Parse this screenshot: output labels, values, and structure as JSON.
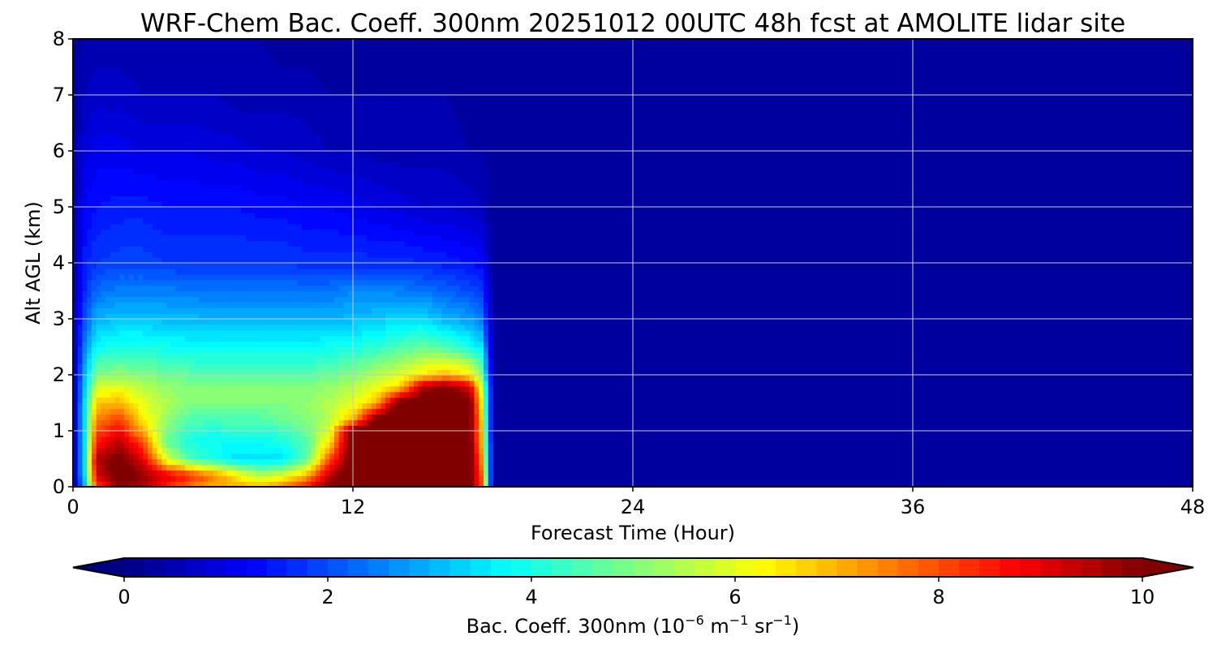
{
  "chart_data": {
    "type": "heatmap",
    "title": "WRF-Chem Bac. Coeff. 300nm  20251012 00UTC 48h fcst at AMOLITE lidar site",
    "xlabel": "Forecast Time (Hour)",
    "ylabel": "Alt AGL (km)",
    "xlim": [
      0,
      48
    ],
    "ylim": [
      0,
      8
    ],
    "xticks": [
      0,
      12,
      24,
      36,
      48
    ],
    "yticks": [
      0,
      1,
      2,
      3,
      4,
      5,
      6,
      7,
      8
    ],
    "grid": true,
    "colormap": "jet",
    "colorbar": {
      "label_main": "Bac. Coeff. 300nm  (10",
      "label_exp1": "−6",
      "label_mid": " m",
      "label_exp2": "−1",
      "label_sr": " sr",
      "label_exp3": "−1",
      "label_end": ")",
      "range": [
        0,
        10
      ],
      "ticks": [
        0,
        2,
        4,
        6,
        8,
        10
      ],
      "extend": "both",
      "levels": 50
    },
    "x": [
      0,
      0.5,
      1,
      2,
      3,
      4,
      5,
      6,
      7,
      8,
      9,
      10,
      11,
      12,
      13,
      14,
      15,
      16,
      17,
      17.5,
      18
    ],
    "y": [
      0,
      0.2,
      0.5,
      0.8,
      1.0,
      1.2,
      1.5,
      1.8,
      2.0,
      2.2,
      2.5,
      3.0,
      3.5,
      4.0,
      5.0,
      6.0,
      7.0,
      8.0
    ],
    "z": [
      [
        0.3,
        3.0,
        8.0,
        9.8,
        9.5,
        8.5,
        7.5,
        7.0,
        7.0,
        7.0,
        7.5,
        8.5,
        10.0,
        10.5,
        10.5,
        10.5,
        10.5,
        10.5,
        10.5,
        8.0,
        0.5
      ],
      [
        0.3,
        3.5,
        9.0,
        10.5,
        9.8,
        9.0,
        8.5,
        7.5,
        6.5,
        5.5,
        6.0,
        7.0,
        9.5,
        10.5,
        10.5,
        10.5,
        10.5,
        10.5,
        10.5,
        8.0,
        0.5
      ],
      [
        0.3,
        3.5,
        9.5,
        10.2,
        9.0,
        6.0,
        4.5,
        4.0,
        3.5,
        3.5,
        3.5,
        4.5,
        8.0,
        10.5,
        10.5,
        10.5,
        10.5,
        10.5,
        10.5,
        7.5,
        0.5
      ],
      [
        0.3,
        3.5,
        8.5,
        9.5,
        8.0,
        4.8,
        4.0,
        3.8,
        3.8,
        3.8,
        4.0,
        4.5,
        6.5,
        10.5,
        10.5,
        10.5,
        10.5,
        10.5,
        10.5,
        7.0,
        0.5
      ],
      [
        0.3,
        3.5,
        8.0,
        8.8,
        7.0,
        5.0,
        4.2,
        4.0,
        4.2,
        4.2,
        4.3,
        4.8,
        6.0,
        10.5,
        10.5,
        10.5,
        10.5,
        10.5,
        10.5,
        7.0,
        0.5
      ],
      [
        0.3,
        3.5,
        7.5,
        8.2,
        6.5,
        5.2,
        4.5,
        4.5,
        4.5,
        4.5,
        4.8,
        5.0,
        5.5,
        7.0,
        10.5,
        10.5,
        10.5,
        10.5,
        10.5,
        6.8,
        0.5
      ],
      [
        0.3,
        3.5,
        6.8,
        7.0,
        6.0,
        5.5,
        5.0,
        5.0,
        5.0,
        5.0,
        5.0,
        5.2,
        5.5,
        6.0,
        7.0,
        10.5,
        10.5,
        10.5,
        10.5,
        6.5,
        0.5
      ],
      [
        0.3,
        3.2,
        5.8,
        6.0,
        5.5,
        5.2,
        5.0,
        5.0,
        5.0,
        5.0,
        5.0,
        5.0,
        5.2,
        5.5,
        6.0,
        6.5,
        9.5,
        10.0,
        9.0,
        6.0,
        0.5
      ],
      [
        0.3,
        3.0,
        5.0,
        5.2,
        5.0,
        4.8,
        4.7,
        4.6,
        4.6,
        4.6,
        4.6,
        4.6,
        4.8,
        5.0,
        5.5,
        6.0,
        6.5,
        7.0,
        6.5,
        5.0,
        0.5
      ],
      [
        0.3,
        2.8,
        4.5,
        4.7,
        4.6,
        4.4,
        4.3,
        4.2,
        4.2,
        4.2,
        4.2,
        4.2,
        4.4,
        4.6,
        5.0,
        5.3,
        5.8,
        6.0,
        5.5,
        4.5,
        0.5
      ],
      [
        0.3,
        2.5,
        3.8,
        4.0,
        4.0,
        3.9,
        3.8,
        3.8,
        3.8,
        3.8,
        3.8,
        3.8,
        3.9,
        4.0,
        4.2,
        4.5,
        4.8,
        4.5,
        4.0,
        3.5,
        0.5
      ],
      [
        0.3,
        2.0,
        3.0,
        3.2,
        3.2,
        3.1,
        3.1,
        3.0,
        3.0,
        3.0,
        3.0,
        3.0,
        3.0,
        3.1,
        3.2,
        3.4,
        3.4,
        3.0,
        2.8,
        2.5,
        0.4
      ],
      [
        0.3,
        1.6,
        2.3,
        2.5,
        2.5,
        2.5,
        2.4,
        2.4,
        2.4,
        2.4,
        2.4,
        2.4,
        2.4,
        2.6,
        2.6,
        2.5,
        2.4,
        2.2,
        2.0,
        1.8,
        0.4
      ],
      [
        0.3,
        1.5,
        1.8,
        1.9,
        1.9,
        1.8,
        1.8,
        1.8,
        1.8,
        1.8,
        1.8,
        1.7,
        1.7,
        1.7,
        1.7,
        1.7,
        1.6,
        1.5,
        1.4,
        1.3,
        0.3
      ],
      [
        0.3,
        1.2,
        1.4,
        1.5,
        1.5,
        1.4,
        1.4,
        1.4,
        1.4,
        1.3,
        1.3,
        1.2,
        1.2,
        1.1,
        1.0,
        0.9,
        0.8,
        0.8,
        0.7,
        0.6,
        0.3
      ],
      [
        0.3,
        0.9,
        1.1,
        1.1,
        1.0,
        1.0,
        1.0,
        0.9,
        0.9,
        0.8,
        0.8,
        0.7,
        0.6,
        0.6,
        0.5,
        0.5,
        0.5,
        0.5,
        0.4,
        0.4,
        0.3
      ],
      [
        0.3,
        0.6,
        0.7,
        0.7,
        0.6,
        0.6,
        0.6,
        0.6,
        0.5,
        0.5,
        0.5,
        0.5,
        0.4,
        0.4,
        0.4,
        0.4,
        0.4,
        0.4,
        0.3,
        0.3,
        0.3
      ],
      [
        0.3,
        0.4,
        0.5,
        0.5,
        0.4,
        0.4,
        0.4,
        0.4,
        0.4,
        0.4,
        0.3,
        0.3,
        0.3,
        0.3,
        0.3,
        0.3,
        0.3,
        0.3,
        0.3,
        0.3,
        0.3
      ]
    ],
    "background_value": 0.3
  }
}
